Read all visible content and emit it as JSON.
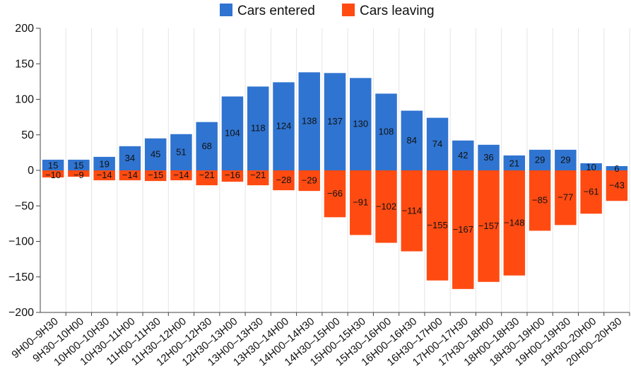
{
  "chart_data": {
    "type": "bar",
    "stacked": true,
    "categories": [
      "9H00–9H30",
      "9H30–10H00",
      "10H00–10H30",
      "10H30–11H00",
      "11H00–11H30",
      "11H30–12H00",
      "12H00–12H30",
      "12H30–13H00",
      "13H00–13H30",
      "13H30–14H00",
      "14H00–14H30",
      "14H30–15H00",
      "15H00–15H30",
      "15H30–16H00",
      "16H00–16H30",
      "16H30–17H00",
      "17H00–17H30",
      "17H30–18H00",
      "18H00–18H30",
      "18H30–19H00",
      "19H00–19H30",
      "19H30–20H00",
      "20H00–20H30"
    ],
    "series": [
      {
        "name": "Cars entered",
        "color": "#2f74d0",
        "values": [
          15,
          15,
          19,
          34,
          45,
          51,
          68,
          104,
          118,
          124,
          138,
          137,
          130,
          108,
          84,
          74,
          42,
          36,
          21,
          29,
          29,
          10,
          6
        ]
      },
      {
        "name": "Cars leaving",
        "color": "#ff4b12",
        "values": [
          -10,
          -9,
          -14,
          -14,
          -15,
          -14,
          -21,
          -16,
          -21,
          -28,
          -29,
          -66,
          -91,
          -102,
          -114,
          -155,
          -167,
          -157,
          -148,
          -85,
          -77,
          -61,
          -43
        ]
      }
    ],
    "yticks": [
      "200",
      "150",
      "100",
      "50",
      "0",
      "−50",
      "−100",
      "−150",
      "−200"
    ],
    "ylim": [
      -200,
      200
    ],
    "legend_position": "top-center",
    "grid": "vertical"
  }
}
